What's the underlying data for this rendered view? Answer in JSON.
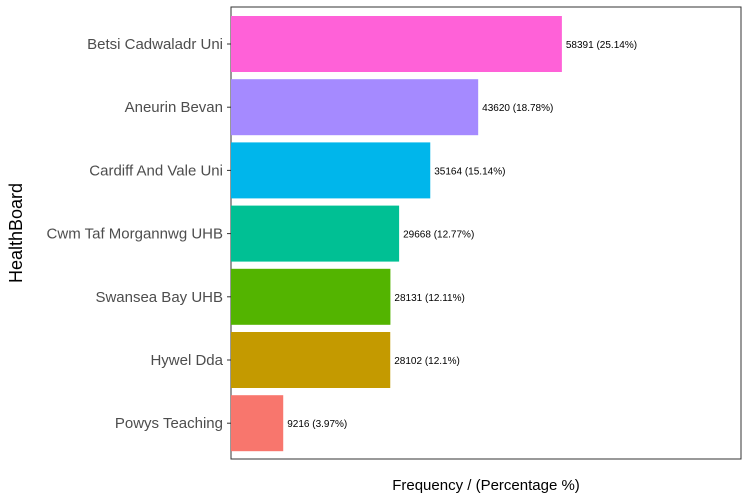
{
  "chart_data": {
    "type": "bar",
    "orientation": "horizontal",
    "title": "",
    "xlabel": "Frequency / (Percentage %)",
    "ylabel": "HealthBoard",
    "xlim": [
      0,
      90000
    ],
    "grid": false,
    "legend": "none",
    "categories": [
      "Betsi Cadwaladr Uni",
      "Aneurin Bevan",
      "Cardiff And Vale Uni",
      "Cwm Taf Morgannwg UHB",
      "Swansea Bay UHB",
      "Hywel Dda",
      "Powys Teaching"
    ],
    "values": [
      58391,
      43620,
      35164,
      29668,
      28131,
      28102,
      9216
    ],
    "value_labels": [
      "58391 (25.14%)",
      "43620 (18.78%)",
      "35164 (15.14%)",
      "29668 (12.77%)",
      "28131 (12.11%)",
      "28102 (12.1%)",
      "9216 (3.97%)"
    ],
    "colors": [
      "#FF61D8",
      "#A58AFF",
      "#00B6EB",
      "#00C094",
      "#53B400",
      "#C49A00",
      "#F8766D"
    ]
  }
}
